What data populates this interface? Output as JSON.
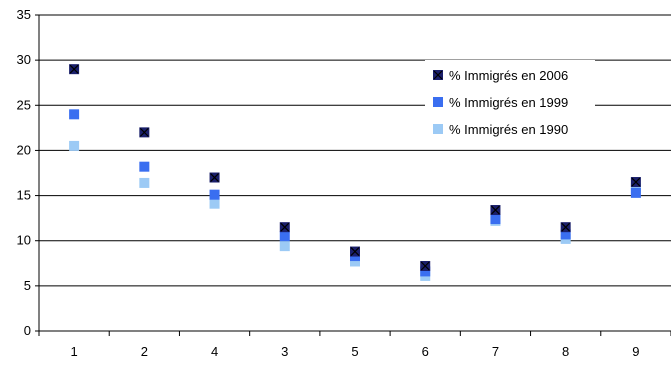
{
  "chart_data": {
    "type": "scatter",
    "categories": [
      "1",
      "2",
      "4",
      "3",
      "5",
      "6",
      "7",
      "8",
      "9"
    ],
    "series": [
      {
        "name": "% Immigrés en 2006",
        "color": "#1a1f6b",
        "marker": "x-square",
        "values": [
          29,
          22,
          17,
          11.5,
          8.8,
          7.2,
          13.4,
          11.5,
          16.5
        ]
      },
      {
        "name": "% Immigrés en 1999",
        "color": "#3a6ef0",
        "marker": "square",
        "values": [
          24,
          18.2,
          15.1,
          10.5,
          8.3,
          6.6,
          12.4,
          10.7,
          15.3
        ]
      },
      {
        "name": "% Immigrés en 1990",
        "color": "#9ccaf5",
        "marker": "square",
        "values": [
          20.5,
          16.4,
          14.1,
          9.4,
          7.7,
          6.1,
          12.2,
          10.2,
          15.8
        ]
      }
    ],
    "y_ticks": [
      "0",
      "5",
      "10",
      "15",
      "20",
      "25",
      "30",
      "35"
    ],
    "ylim": [
      0,
      35
    ],
    "grid": true,
    "legend_position": "top-right"
  }
}
